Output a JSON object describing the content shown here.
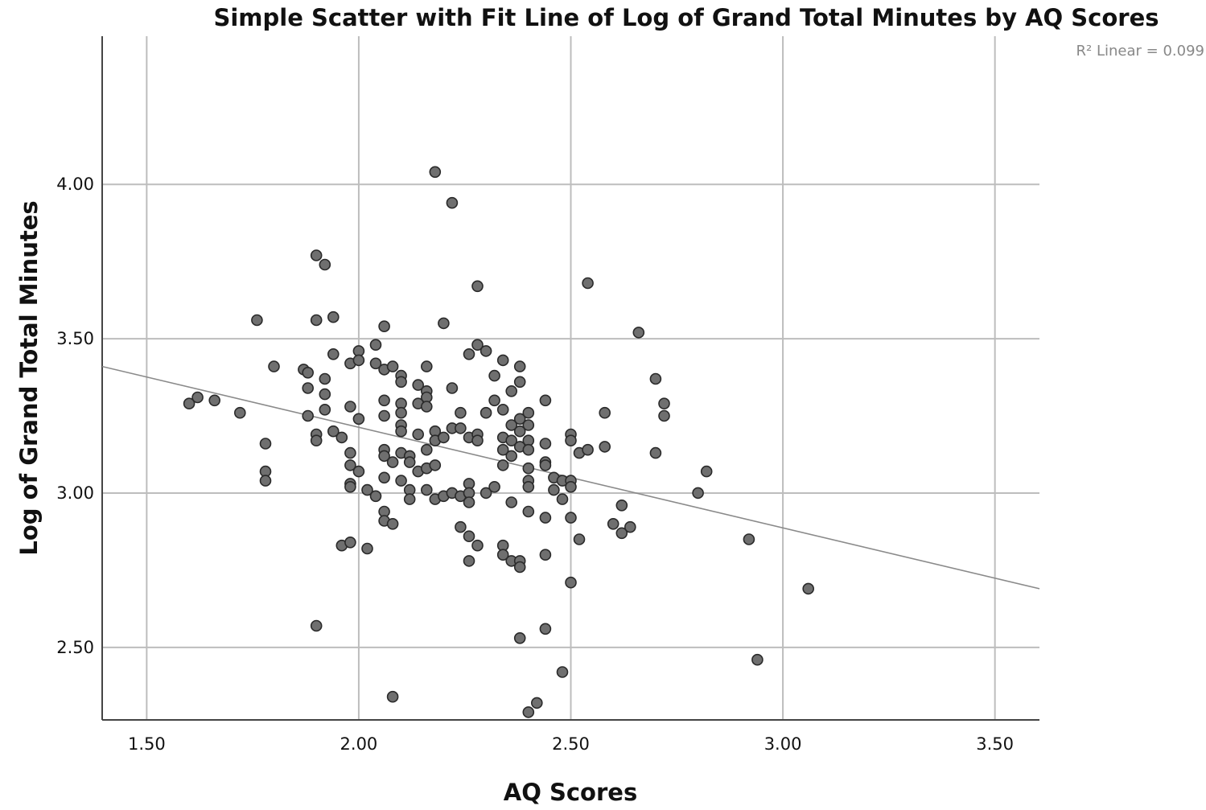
{
  "chart_data": {
    "type": "scatter",
    "title": "Simple Scatter with Fit Line of Log of Grand Total Minutes by AQ Scores",
    "xlabel": "AQ Scores",
    "ylabel": "Log of Grand Total Minutes",
    "xlim": [
      1.395,
      3.605
    ],
    "ylim": [
      2.265,
      4.48
    ],
    "x_ticks": [
      1.5,
      2.0,
      2.5,
      3.0,
      3.5
    ],
    "x_tick_labels": [
      "1.50",
      "2.00",
      "2.50",
      "3.00",
      "3.50"
    ],
    "y_ticks": [
      2.5,
      3.0,
      3.5,
      4.0
    ],
    "y_tick_labels": [
      "2.50",
      "3.00",
      "3.50",
      "4.00"
    ],
    "grid": true,
    "fit_line": {
      "label": "R² Linear = 0.099",
      "start": [
        1.395,
        3.41
      ],
      "end": [
        3.605,
        2.69
      ]
    },
    "series": [
      {
        "points": [
          [
            1.6,
            3.29
          ],
          [
            1.62,
            3.31
          ],
          [
            1.66,
            3.3
          ],
          [
            1.72,
            3.26
          ],
          [
            1.76,
            3.56
          ],
          [
            1.78,
            3.16
          ],
          [
            1.78,
            3.07
          ],
          [
            1.78,
            3.04
          ],
          [
            1.8,
            3.41
          ],
          [
            1.87,
            3.4
          ],
          [
            1.88,
            3.39
          ],
          [
            1.88,
            3.34
          ],
          [
            1.88,
            3.25
          ],
          [
            1.9,
            3.77
          ],
          [
            1.9,
            3.56
          ],
          [
            1.9,
            3.19
          ],
          [
            1.9,
            3.17
          ],
          [
            1.9,
            2.57
          ],
          [
            1.92,
            3.74
          ],
          [
            1.92,
            3.37
          ],
          [
            1.92,
            3.32
          ],
          [
            1.92,
            3.27
          ],
          [
            1.94,
            3.57
          ],
          [
            1.94,
            3.45
          ],
          [
            1.94,
            3.2
          ],
          [
            1.96,
            3.18
          ],
          [
            1.96,
            2.83
          ],
          [
            1.98,
            3.42
          ],
          [
            1.98,
            3.28
          ],
          [
            1.98,
            3.13
          ],
          [
            1.98,
            3.09
          ],
          [
            1.98,
            3.03
          ],
          [
            1.98,
            3.02
          ],
          [
            1.98,
            2.84
          ],
          [
            2.0,
            3.46
          ],
          [
            2.0,
            3.43
          ],
          [
            2.0,
            3.24
          ],
          [
            2.0,
            3.07
          ],
          [
            2.02,
            3.01
          ],
          [
            2.02,
            2.82
          ],
          [
            2.04,
            3.48
          ],
          [
            2.04,
            3.42
          ],
          [
            2.04,
            2.99
          ],
          [
            2.06,
            3.54
          ],
          [
            2.06,
            3.4
          ],
          [
            2.06,
            3.3
          ],
          [
            2.06,
            3.25
          ],
          [
            2.06,
            3.14
          ],
          [
            2.06,
            3.12
          ],
          [
            2.06,
            3.05
          ],
          [
            2.06,
            2.94
          ],
          [
            2.06,
            2.91
          ],
          [
            2.08,
            3.41
          ],
          [
            2.08,
            3.1
          ],
          [
            2.08,
            2.9
          ],
          [
            2.08,
            2.34
          ],
          [
            2.1,
            3.38
          ],
          [
            2.1,
            3.36
          ],
          [
            2.1,
            3.29
          ],
          [
            2.1,
            3.26
          ],
          [
            2.1,
            3.22
          ],
          [
            2.1,
            3.2
          ],
          [
            2.1,
            3.13
          ],
          [
            2.1,
            3.04
          ],
          [
            2.12,
            3.12
          ],
          [
            2.12,
            3.1
          ],
          [
            2.12,
            3.01
          ],
          [
            2.12,
            2.98
          ],
          [
            2.14,
            3.35
          ],
          [
            2.14,
            3.29
          ],
          [
            2.14,
            3.19
          ],
          [
            2.14,
            3.07
          ],
          [
            2.16,
            3.41
          ],
          [
            2.16,
            3.33
          ],
          [
            2.16,
            3.31
          ],
          [
            2.16,
            3.28
          ],
          [
            2.16,
            3.14
          ],
          [
            2.16,
            3.08
          ],
          [
            2.16,
            3.01
          ],
          [
            2.18,
            4.04
          ],
          [
            2.18,
            3.2
          ],
          [
            2.18,
            3.17
          ],
          [
            2.18,
            3.09
          ],
          [
            2.18,
            2.98
          ],
          [
            2.2,
            3.55
          ],
          [
            2.2,
            3.18
          ],
          [
            2.2,
            2.99
          ],
          [
            2.22,
            3.94
          ],
          [
            2.22,
            3.34
          ],
          [
            2.22,
            3.21
          ],
          [
            2.22,
            3.0
          ],
          [
            2.24,
            3.26
          ],
          [
            2.24,
            3.21
          ],
          [
            2.24,
            2.99
          ],
          [
            2.24,
            2.89
          ],
          [
            2.26,
            3.45
          ],
          [
            2.26,
            3.18
          ],
          [
            2.26,
            3.03
          ],
          [
            2.26,
            3.0
          ],
          [
            2.26,
            2.97
          ],
          [
            2.26,
            2.86
          ],
          [
            2.26,
            2.78
          ],
          [
            2.28,
            3.67
          ],
          [
            2.28,
            3.48
          ],
          [
            2.28,
            3.19
          ],
          [
            2.28,
            3.17
          ],
          [
            2.28,
            2.83
          ],
          [
            2.3,
            3.46
          ],
          [
            2.3,
            3.26
          ],
          [
            2.3,
            3.0
          ],
          [
            2.32,
            3.38
          ],
          [
            2.32,
            3.3
          ],
          [
            2.32,
            3.02
          ],
          [
            2.34,
            3.43
          ],
          [
            2.34,
            3.27
          ],
          [
            2.34,
            3.18
          ],
          [
            2.34,
            3.14
          ],
          [
            2.34,
            3.09
          ],
          [
            2.34,
            2.83
          ],
          [
            2.34,
            2.8
          ],
          [
            2.36,
            3.33
          ],
          [
            2.36,
            3.22
          ],
          [
            2.36,
            3.17
          ],
          [
            2.36,
            3.12
          ],
          [
            2.36,
            2.97
          ],
          [
            2.36,
            2.78
          ],
          [
            2.38,
            3.41
          ],
          [
            2.38,
            3.36
          ],
          [
            2.38,
            3.24
          ],
          [
            2.38,
            3.2
          ],
          [
            2.38,
            3.15
          ],
          [
            2.38,
            2.78
          ],
          [
            2.38,
            2.76
          ],
          [
            2.38,
            2.53
          ],
          [
            2.4,
            3.26
          ],
          [
            2.4,
            3.22
          ],
          [
            2.4,
            3.17
          ],
          [
            2.4,
            3.14
          ],
          [
            2.4,
            3.08
          ],
          [
            2.4,
            3.04
          ],
          [
            2.4,
            3.02
          ],
          [
            2.4,
            2.94
          ],
          [
            2.4,
            2.29
          ],
          [
            2.42,
            2.32
          ],
          [
            2.44,
            3.3
          ],
          [
            2.44,
            3.16
          ],
          [
            2.44,
            3.1
          ],
          [
            2.44,
            3.09
          ],
          [
            2.44,
            2.92
          ],
          [
            2.44,
            2.8
          ],
          [
            2.44,
            2.56
          ],
          [
            2.46,
            3.05
          ],
          [
            2.46,
            3.01
          ],
          [
            2.48,
            3.04
          ],
          [
            2.48,
            2.98
          ],
          [
            2.48,
            2.42
          ],
          [
            2.5,
            3.19
          ],
          [
            2.5,
            3.17
          ],
          [
            2.5,
            3.04
          ],
          [
            2.5,
            3.02
          ],
          [
            2.5,
            2.92
          ],
          [
            2.5,
            2.71
          ],
          [
            2.52,
            3.13
          ],
          [
            2.52,
            2.85
          ],
          [
            2.54,
            3.68
          ],
          [
            2.54,
            3.14
          ],
          [
            2.58,
            3.26
          ],
          [
            2.58,
            3.15
          ],
          [
            2.6,
            2.9
          ],
          [
            2.62,
            2.96
          ],
          [
            2.62,
            2.87
          ],
          [
            2.64,
            2.89
          ],
          [
            2.66,
            3.52
          ],
          [
            2.7,
            3.37
          ],
          [
            2.7,
            3.13
          ],
          [
            2.72,
            3.29
          ],
          [
            2.72,
            3.25
          ],
          [
            2.8,
            3.0
          ],
          [
            2.82,
            3.07
          ],
          [
            2.92,
            2.85
          ],
          [
            2.94,
            2.46
          ],
          [
            3.06,
            2.69
          ]
        ]
      }
    ]
  }
}
